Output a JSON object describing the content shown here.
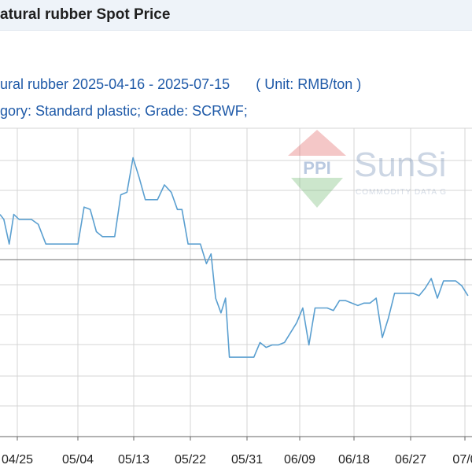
{
  "header": {
    "title": "atural rubber Spot Price"
  },
  "subtitle_line1": "ural rubber 2025-04-16 - 2025-07-15",
  "unit_label": "( Unit: RMB/ton )",
  "subtitle_line2": "gory: Standard plastic; Grade: SCRWF;",
  "watermark": {
    "brand": "SunSi",
    "tagline": "COMMODITY DATA G",
    "logo_text": "PPI"
  },
  "colors": {
    "line": "#5a9fd0",
    "grid": "#d4d4d4",
    "axis": "#666666",
    "title_bar": "#eef3f9",
    "subtitle": "#1f5aa8",
    "logo_red": "#e06060",
    "logo_green": "#70b870"
  },
  "chart_data": {
    "type": "line",
    "title": "",
    "xlabel": "",
    "ylabel": "",
    "grid": true,
    "x_ticks": [
      "04/25",
      "05/04",
      "05/13",
      "05/22",
      "05/31",
      "06/09",
      "06/18",
      "06/27",
      "07/0"
    ],
    "ylim": [
      0,
      100
    ],
    "series": [
      {
        "values": [
          [
            0,
            80
          ],
          [
            0.5,
            78
          ],
          [
            1.2,
            68
          ],
          [
            1.8,
            80
          ],
          [
            2.5,
            78
          ],
          [
            3.3,
            78
          ],
          [
            4.1,
            78
          ],
          [
            5.0,
            76
          ],
          [
            6.0,
            68
          ],
          [
            7.5,
            68
          ],
          [
            9.0,
            68
          ],
          [
            10.2,
            68
          ],
          [
            11.0,
            83
          ],
          [
            11.8,
            82
          ],
          [
            12.6,
            73
          ],
          [
            13.4,
            71
          ],
          [
            14.2,
            71
          ],
          [
            15.0,
            71
          ],
          [
            15.8,
            88
          ],
          [
            16.6,
            89
          ],
          [
            17.4,
            103
          ],
          [
            18.2,
            95
          ],
          [
            19.0,
            86
          ],
          [
            19.8,
            86
          ],
          [
            20.6,
            86
          ],
          [
            21.5,
            92
          ],
          [
            22.4,
            89
          ],
          [
            23.2,
            82
          ],
          [
            23.8,
            82
          ],
          [
            24.6,
            68
          ],
          [
            25.4,
            68
          ],
          [
            26.2,
            68
          ],
          [
            27.0,
            60
          ],
          [
            27.6,
            64
          ],
          [
            28.2,
            46
          ],
          [
            28.9,
            40
          ],
          [
            29.5,
            46
          ],
          [
            30.0,
            22
          ],
          [
            30.8,
            22
          ],
          [
            31.6,
            22
          ],
          [
            32.4,
            22
          ],
          [
            33.2,
            22
          ],
          [
            34.0,
            28
          ],
          [
            34.8,
            26
          ],
          [
            35.6,
            27
          ],
          [
            36.4,
            27
          ],
          [
            37.2,
            28
          ],
          [
            38.0,
            32
          ],
          [
            38.8,
            36
          ],
          [
            39.6,
            42
          ],
          [
            40.4,
            27
          ],
          [
            41.2,
            42
          ],
          [
            42.0,
            42
          ],
          [
            42.8,
            42
          ],
          [
            43.6,
            41
          ],
          [
            44.4,
            45
          ],
          [
            45.2,
            45
          ],
          [
            46.0,
            44
          ],
          [
            46.8,
            43
          ],
          [
            47.6,
            44
          ],
          [
            48.4,
            44
          ],
          [
            49.2,
            46
          ],
          [
            50.0,
            30
          ],
          [
            50.8,
            38
          ],
          [
            51.6,
            48
          ],
          [
            52.4,
            48
          ],
          [
            53.2,
            48
          ],
          [
            54.0,
            48
          ],
          [
            54.8,
            47
          ],
          [
            55.6,
            50
          ],
          [
            56.4,
            54
          ],
          [
            57.2,
            46
          ],
          [
            58.0,
            53
          ],
          [
            58.8,
            53
          ],
          [
            59.6,
            53
          ],
          [
            60.4,
            51
          ],
          [
            61.2,
            47
          ]
        ]
      }
    ]
  }
}
